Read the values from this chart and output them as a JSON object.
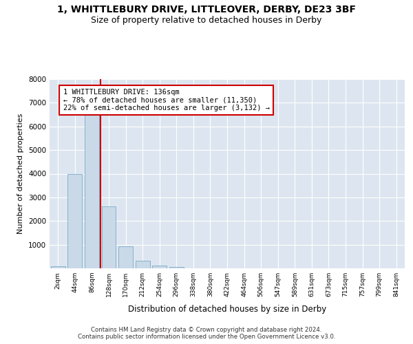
{
  "title": "1, WHITTLEBURY DRIVE, LITTLEOVER, DERBY, DE23 3BF",
  "subtitle": "Size of property relative to detached houses in Derby",
  "xlabel": "Distribution of detached houses by size in Derby",
  "ylabel": "Number of detached properties",
  "bar_labels": [
    "2sqm",
    "44sqm",
    "86sqm",
    "128sqm",
    "170sqm",
    "212sqm",
    "254sqm",
    "296sqm",
    "338sqm",
    "380sqm",
    "422sqm",
    "464sqm",
    "506sqm",
    "547sqm",
    "589sqm",
    "631sqm",
    "673sqm",
    "715sqm",
    "757sqm",
    "799sqm",
    "841sqm"
  ],
  "bar_values": [
    80,
    3980,
    6600,
    2620,
    940,
    330,
    110,
    70,
    0,
    0,
    0,
    0,
    0,
    0,
    0,
    0,
    0,
    0,
    0,
    0,
    0
  ],
  "bar_color": "#c9d9e8",
  "bar_edge_color": "#7aaac8",
  "vline_color": "#cc0000",
  "annotation_text": "1 WHITTLEBURY DRIVE: 136sqm\n← 78% of detached houses are smaller (11,350)\n22% of semi-detached houses are larger (3,132) →",
  "box_color": "#cc0000",
  "ylim": [
    0,
    8000
  ],
  "yticks": [
    0,
    1000,
    2000,
    3000,
    4000,
    5000,
    6000,
    7000,
    8000
  ],
  "background_color": "#dde6f0",
  "footer": "Contains HM Land Registry data © Crown copyright and database right 2024.\nContains public sector information licensed under the Open Government Licence v3.0.",
  "title_fontsize": 10,
  "subtitle_fontsize": 9
}
